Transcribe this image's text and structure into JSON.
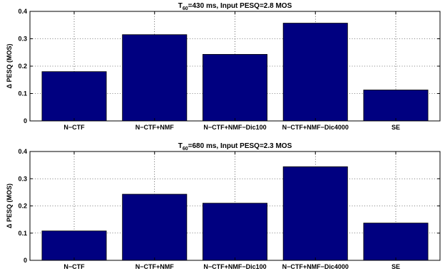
{
  "chart_data": [
    {
      "type": "bar",
      "title": {
        "prefix": "T",
        "subscript": "60",
        "suffix": "=430 ms, Input PESQ=2.8 MOS"
      },
      "ylabel": "Δ PESQ (MOS)",
      "xlabel": "",
      "categories": [
        "N−CTF",
        "N−CTF+NMF",
        "N−CTF+NMF−Dic100",
        "N−CTF+NMF−Dic4000",
        "SE"
      ],
      "values": [
        0.18,
        0.315,
        0.243,
        0.357,
        0.113
      ],
      "ylim": [
        0,
        0.4
      ],
      "yticks": [
        0,
        0.1,
        0.2,
        0.3,
        0.4
      ],
      "ytick_labels": [
        "0",
        "0.1",
        "0.2",
        "0.3",
        "0.4"
      ],
      "grid": true,
      "bar_color": "#000080"
    },
    {
      "type": "bar",
      "title": {
        "prefix": "T",
        "subscript": "60",
        "suffix": "=680 ms, Input PESQ=2.3 MOS"
      },
      "ylabel": "Δ PESQ (MOS)",
      "xlabel": "",
      "categories": [
        "N−CTF",
        "N−CTF+NMF",
        "N−CTF+NMF−Dic100",
        "N−CTF+NMF−Dic4000",
        "SE"
      ],
      "values": [
        0.108,
        0.243,
        0.21,
        0.344,
        0.137
      ],
      "ylim": [
        0,
        0.4
      ],
      "yticks": [
        0,
        0.1,
        0.2,
        0.3,
        0.4
      ],
      "ytick_labels": [
        "0",
        "0.1",
        "0.2",
        "0.3",
        "0.4"
      ],
      "grid": true,
      "bar_color": "#000080"
    }
  ]
}
